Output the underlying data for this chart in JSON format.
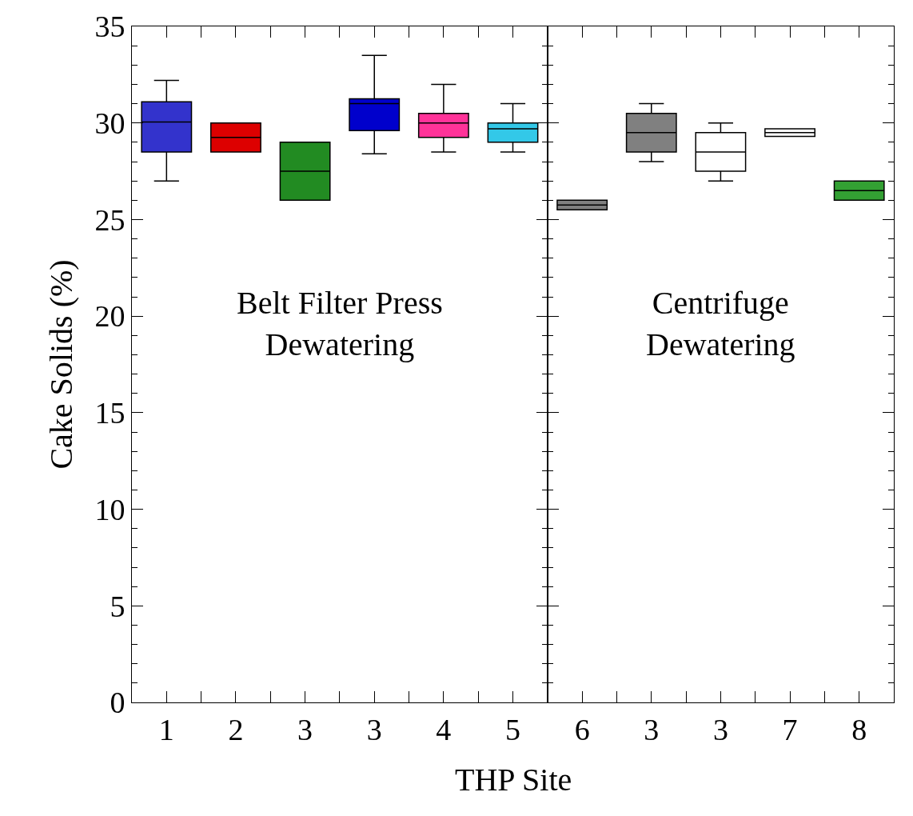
{
  "chart_data": [
    {
      "type": "box",
      "xlabel": "THP Site",
      "ylabel": "Cake Solids (%)",
      "annotations": [
        "Belt Filter Press\nDewatering"
      ],
      "categories": [
        "1",
        "2",
        "3",
        "3",
        "4",
        "5"
      ],
      "colors": [
        "#3333cc",
        "#dd0000",
        "#228b22",
        "#0000cc",
        "#ff3399",
        "#33c8e8"
      ],
      "boxes": [
        {
          "low": 27.0,
          "q1": 28.5,
          "median": 30.05,
          "q3": 31.1,
          "high": 32.2
        },
        {
          "low": 28.5,
          "q1": 28.5,
          "median": 29.25,
          "q3": 30.0,
          "high": 30.0
        },
        {
          "low": 26.0,
          "q1": 26.0,
          "median": 27.5,
          "q3": 29.0,
          "high": 29.0
        },
        {
          "low": 28.4,
          "q1": 29.6,
          "median": 31.0,
          "q3": 31.25,
          "high": 33.5
        },
        {
          "low": 28.5,
          "q1": 29.25,
          "median": 30.0,
          "q3": 30.5,
          "high": 32.0
        },
        {
          "low": 28.5,
          "q1": 29.0,
          "median": 29.7,
          "q3": 30.0,
          "high": 31.0
        }
      ],
      "ylim": [
        0,
        35
      ],
      "yticks": [
        0,
        5,
        10,
        15,
        20,
        25,
        30,
        35
      ]
    },
    {
      "type": "box",
      "annotations": [
        "Centrifuge\nDewatering"
      ],
      "categories": [
        "6",
        "3",
        "3",
        "7",
        "8"
      ],
      "colors": [
        "#808080",
        "#808080",
        "#ffffff",
        "#ffffff",
        "#33a033"
      ],
      "boxes": [
        {
          "low": 25.5,
          "q1": 25.5,
          "median": 25.75,
          "q3": 26.0,
          "high": 26.0
        },
        {
          "low": 28.0,
          "q1": 28.5,
          "median": 29.5,
          "q3": 30.5,
          "high": 31.0
        },
        {
          "low": 27.0,
          "q1": 27.5,
          "median": 28.5,
          "q3": 29.5,
          "high": 30.0
        },
        {
          "low": 29.3,
          "q1": 29.3,
          "median": 29.5,
          "q3": 29.7,
          "high": 29.7
        },
        {
          "low": 26.0,
          "q1": 26.0,
          "median": 26.5,
          "q3": 27.0,
          "high": 27.0
        }
      ],
      "ylim": [
        0,
        35
      ],
      "yticks": [
        0,
        5,
        10,
        15,
        20,
        25,
        30,
        35
      ],
      "tick_labels": "x"
    }
  ]
}
